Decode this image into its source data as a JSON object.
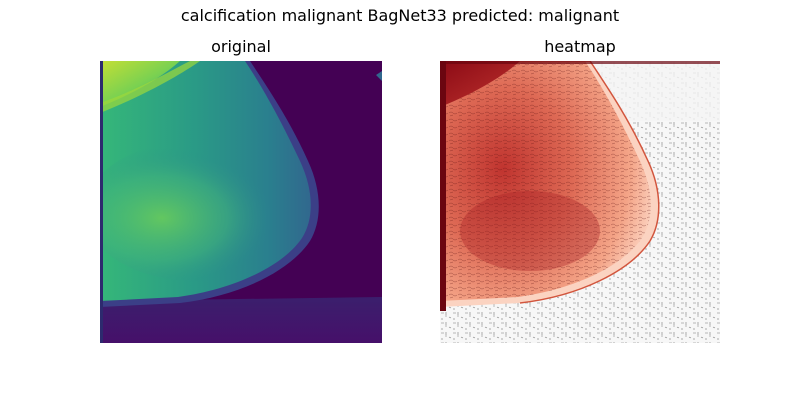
{
  "figure": {
    "suptitle": "calcification malignant BagNet33 predicted: malignant"
  },
  "panels": [
    {
      "title": "original"
    },
    {
      "title": "heatmap"
    }
  ],
  "colors": {
    "viridis_dark": "#440154",
    "viridis_purple": "#3b1f6d",
    "viridis_blue": "#31688e",
    "viridis_teal": "#2a8c8c",
    "viridis_green": "#35b779",
    "viridis_yellow": "#c4df34",
    "heat_dark": "#8b0a15",
    "heat_mid": "#e8836b",
    "heat_light": "#fbd3c1",
    "heat_bg": "#f4f4f4"
  }
}
